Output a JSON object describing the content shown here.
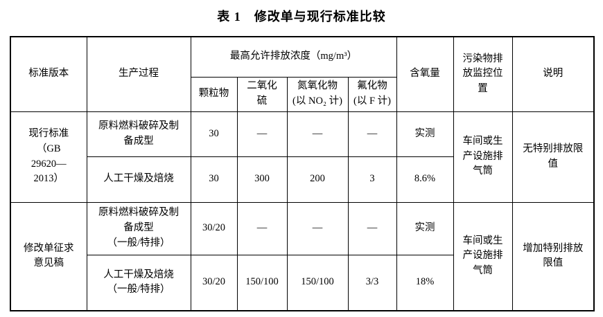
{
  "title": "表 1　修改单与现行标准比较",
  "table": {
    "header": {
      "standard": "标准版本",
      "process": "生产过程",
      "max_concentration": "最高允许排放浓度（mg/m³）",
      "pm": "颗粒物",
      "so2": "二氧化\n硫",
      "nox": "氮氧化物\n(以 NO₂ 计)",
      "fluoride": "氟化物\n(以 F 计)",
      "oxygen": "含氧量",
      "monitoring": "污染物排\n放监控位\n置",
      "remark": "说明"
    },
    "groups": [
      {
        "standard": "现行标准\n（GB\n29620—\n2013）",
        "monitoring": "车间或生\n产设施排\n气筒",
        "remark": "无特别排放限\n值",
        "rows": [
          {
            "process": "原料燃料破碎及制\n备成型",
            "pm": "30",
            "so2": "—",
            "nox": "—",
            "fluoride": "—",
            "oxygen": "实测"
          },
          {
            "process": "人工干燥及焙烧",
            "pm": "30",
            "so2": "300",
            "nox": "200",
            "fluoride": "3",
            "oxygen": "8.6%"
          }
        ]
      },
      {
        "standard": "修改单征求\n意见稿",
        "monitoring": "车间或生\n产设施排\n气筒",
        "remark": "增加特别排放\n限值",
        "rows": [
          {
            "process": "原料燃料破碎及制\n备成型\n（一般/特排）",
            "pm": "30/20",
            "so2": "—",
            "nox": "—",
            "fluoride": "—",
            "oxygen": "实测"
          },
          {
            "process": "人工干燥及焙烧\n（一般/特排）",
            "pm": "30/20",
            "so2": "150/100",
            "nox": "150/100",
            "fluoride": "3/3",
            "oxygen": "18%"
          }
        ]
      }
    ]
  }
}
